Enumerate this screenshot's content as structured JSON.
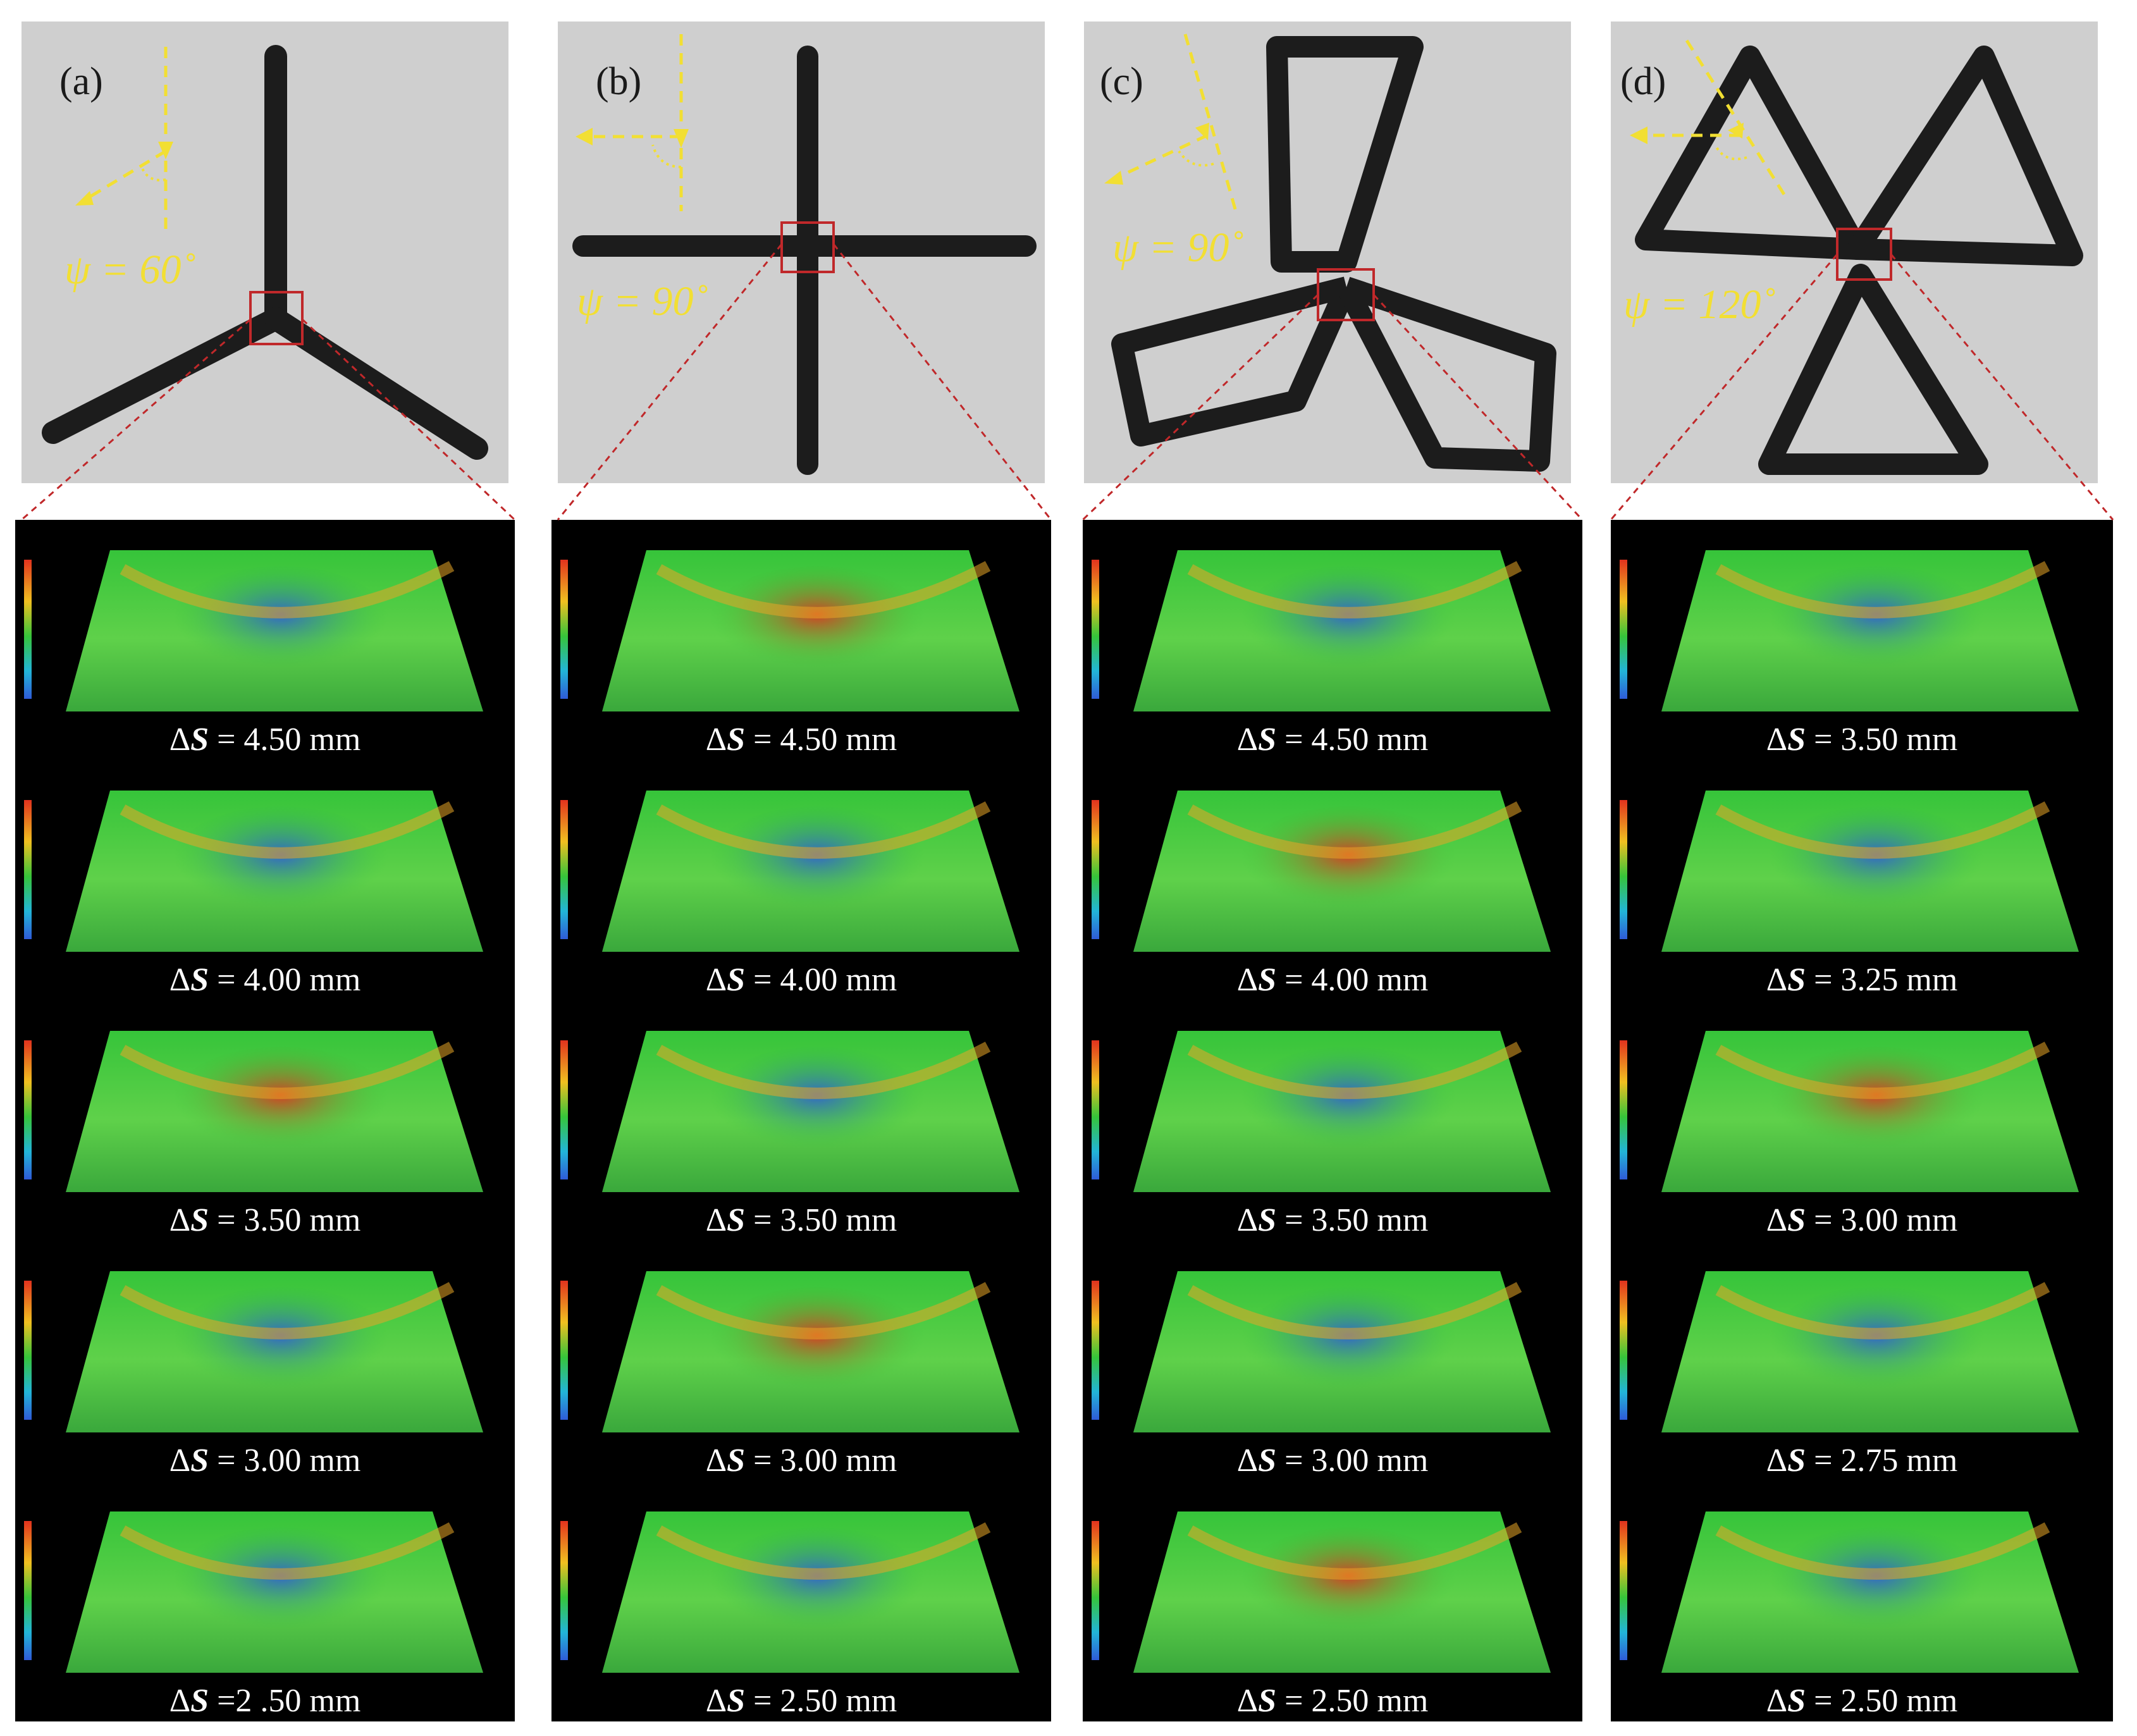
{
  "panels": [
    {
      "label": "(a)",
      "psi": "ψ = 60˚",
      "entries": [
        {
          "prefix": "Δ",
          "symbol": "S",
          "value": " = 4.50 mm"
        },
        {
          "prefix": "Δ",
          "symbol": "S",
          "value": " = 4.00 mm"
        },
        {
          "prefix": "Δ",
          "symbol": "S",
          "value": " = 3.50 mm"
        },
        {
          "prefix": "Δ",
          "symbol": "S",
          "value": " = 3.00 mm"
        },
        {
          "prefix": "Δ",
          "symbol": "S",
          "value": " =2 .50 mm"
        }
      ]
    },
    {
      "label": "(b)",
      "psi": "ψ = 90˚",
      "entries": [
        {
          "prefix": "Δ",
          "symbol": "S",
          "value": " = 4.50 mm"
        },
        {
          "prefix": "Δ",
          "symbol": "S",
          "value": " = 4.00 mm"
        },
        {
          "prefix": "Δ",
          "symbol": "S",
          "value": " = 3.50 mm"
        },
        {
          "prefix": "Δ",
          "symbol": "S",
          "value": " = 3.00 mm"
        },
        {
          "prefix": "Δ",
          "symbol": "S",
          "value": " = 2.50 mm"
        }
      ]
    },
    {
      "label": "(c)",
      "psi": "ψ = 90˚",
      "entries": [
        {
          "prefix": "Δ",
          "symbol": "S",
          "value": " = 4.50 mm"
        },
        {
          "prefix": "Δ",
          "symbol": "S",
          "value": " = 4.00 mm"
        },
        {
          "prefix": "Δ",
          "symbol": "S",
          "value": " = 3.50 mm"
        },
        {
          "prefix": "Δ",
          "symbol": "S",
          "value": " = 3.00 mm"
        },
        {
          "prefix": "Δ",
          "symbol": "S",
          "value": " = 2.50 mm"
        }
      ]
    },
    {
      "label": "(d)",
      "psi": "ψ = 120˚",
      "entries": [
        {
          "prefix": "Δ",
          "symbol": "S",
          "value": " = 3.50 mm"
        },
        {
          "prefix": "Δ",
          "symbol": "S",
          "value": " = 3.25 mm"
        },
        {
          "prefix": "Δ",
          "symbol": "S",
          "value": " = 3.00 mm"
        },
        {
          "prefix": "Δ",
          "symbol": "S",
          "value": " = 2.75 mm"
        },
        {
          "prefix": "Δ",
          "symbol": "S",
          "value": " = 2.50 mm"
        }
      ]
    }
  ],
  "colors": {
    "photo_background": "#cfcfcf",
    "specimen": "#1c1c1c",
    "annotation": "#f2df33",
    "zoom_box": "#c0282a",
    "panel_background": "#000000",
    "surface_low": "#2f5bd8",
    "surface_mid": "#36c43a",
    "surface_high": "#e2321e"
  }
}
